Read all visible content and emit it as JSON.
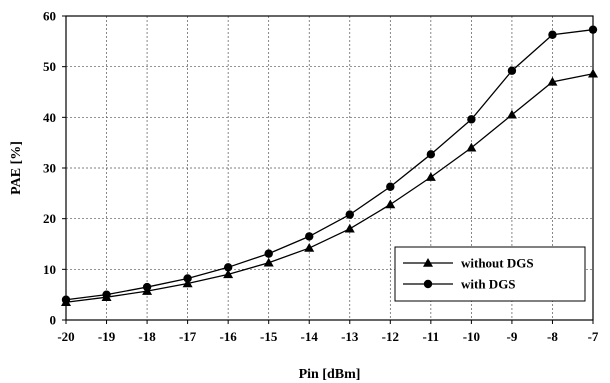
{
  "chart_data": {
    "type": "line",
    "xlabel": "Pin [dBm]",
    "ylabel": "PAE [%]",
    "xlim": [
      -20,
      -7
    ],
    "ylim": [
      0,
      60
    ],
    "x": [
      -20,
      -19,
      -18,
      -17,
      -16,
      -15,
      -14,
      -13,
      -12,
      -11,
      -10,
      -9,
      -8,
      -7
    ],
    "x_ticks": [
      "-20",
      "-19",
      "-18",
      "-17",
      "-16",
      "-15",
      "-14",
      "-13",
      "-12",
      "-11",
      "-10",
      "-9",
      "-8",
      "-7"
    ],
    "y_ticks": [
      "0",
      "10",
      "20",
      "30",
      "40",
      "50",
      "60"
    ],
    "grid": true,
    "legend_position": "bottom-right",
    "series": [
      {
        "name": "without DGS",
        "marker": "triangle",
        "color": "#000000",
        "values": [
          3.5,
          4.5,
          5.7,
          7.2,
          9.0,
          11.3,
          14.2,
          18.0,
          22.8,
          28.2,
          34.0,
          40.5,
          47.0,
          48.6
        ]
      },
      {
        "name": "with DGS",
        "marker": "circle",
        "color": "#000000",
        "values": [
          4.0,
          5.0,
          6.5,
          8.2,
          10.4,
          13.1,
          16.5,
          20.8,
          26.3,
          32.7,
          39.6,
          49.2,
          56.3,
          57.3
        ]
      }
    ]
  }
}
